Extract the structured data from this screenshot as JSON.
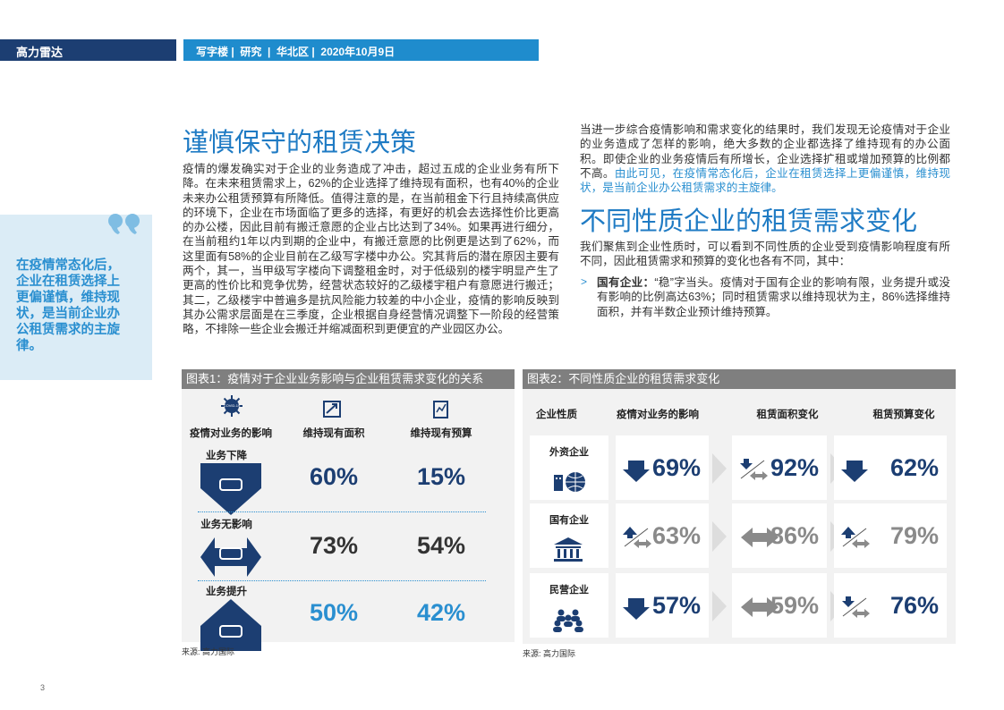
{
  "header": {
    "brand": "高力雷达",
    "tags": "写字楼 |  研究  |  华北区 |  2020年10月9日"
  },
  "quote": "在疫情常态化后，企业在租赁选择上更偏谨慎，维持现状，是当前企业办公租赁需求的主旋律。",
  "section1": {
    "title": "谨慎保守的租赁决策",
    "paragraph": "疫情的爆发确实对于企业的业务造成了冲击，超过五成的企业业务有所下降。在未来租赁需求上，62%的企业选择了维持现有面积，也有40%的企业未来办公租赁预算有所降低。值得注意的是，在当前租金下行且持续高供应的环境下，企业在市场面临了更多的选择，有更好的机会去选择性价比更高的办公楼，因此目前有搬迁意愿的企业占比达到了34%。如果再进行细分，在当前租约1年以内到期的企业中，有搬迁意愿的比例更是达到了62%，而这里面有58%的企业目前在乙级写字楼中办公。究其背后的潜在原因主要有两个，其一，当甲级写字楼向下调整租金时，对于低级别的楼宇明显产生了更高的性价比和竞争优势，经营状态较好的乙级楼宇租户有意愿进行搬迁；其二，乙级楼宇中普遍多是抗风险能力较差的中小企业，疫情的影响反映到其办公需求层面是在三季度，企业根据自身经营情况调整下一阶段的经营策略，不排除一些企业会搬迁并缩减面积到更便宜的产业园区办公。"
  },
  "section2": {
    "intro": "当进一步综合疫情影响和需求变化的结果时，我们发现无论疫情对于企业的业务造成了怎样的影响，绝大多数的企业都选择了维持现有的办公面积。即使企业的业务疫情后有所增长，企业选择扩租或增加预算的比例都不高。",
    "highlight": "由此可见，在疫情常态化后，企业在租赁选择上更偏谨慎，维持现状，是当前企业办公租赁需求的主旋律。",
    "title": "不同性质企业的租赁需求变化",
    "paragraph": "我们聚焦到企业性质时，可以看到不同性质的企业受到疫情影响程度有所不同，因此租赁需求和预算的变化也各有不同，其中：",
    "bullet": {
      "marker": ">",
      "label": "国有企业：",
      "text": "“稳”字当头。疫情对于国有企业的影响有限，业务提升或没有影响的比例高达63%；同时租赁需求以维持现状为主，86%选择维持面积，并有半数企业预计维持预算。"
    }
  },
  "figure1": {
    "title": "图表1：疫情对于企业业务影响与企业租赁需求变化的关系",
    "icon_label": "COVID-19",
    "headers": [
      "疫情对业务的影响",
      "维持现有面积",
      "维持现有预算"
    ],
    "rows": [
      {
        "label": "业务下降",
        "values": [
          "60%",
          "15%"
        ]
      },
      {
        "label": "业务无影响",
        "values": [
          "73%",
          "54%"
        ]
      },
      {
        "label": "业务提升",
        "values": [
          "50%",
          "42%"
        ]
      }
    ],
    "source": "来源: 高力国际"
  },
  "figure2": {
    "title": "图表2：不同性质企业的租赁需求变化",
    "headers": [
      "企业性质",
      "疫情对业务的影响",
      "租赁面积变化",
      "租赁预算变化"
    ],
    "rows": [
      {
        "label": "外资企业",
        "values": [
          "69%",
          "92%",
          "62%"
        ]
      },
      {
        "label": "国有企业",
        "values": [
          "63%",
          "86%",
          "79%"
        ]
      },
      {
        "label": "民营企业",
        "values": [
          "57%",
          "59%",
          "76%"
        ]
      }
    ],
    "source": "来源: 高力国际"
  },
  "page_number": "3"
}
